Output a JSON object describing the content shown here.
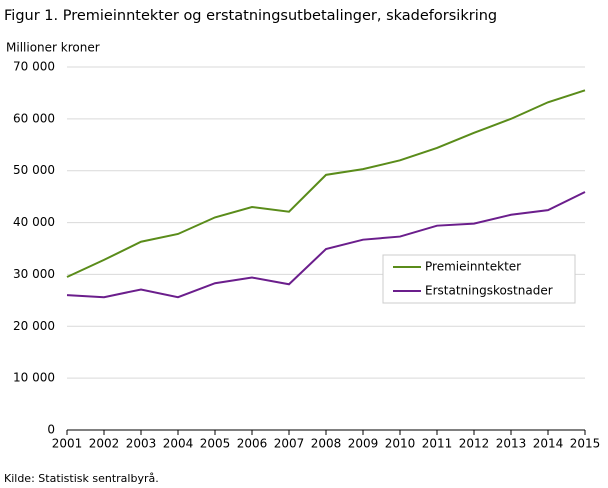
{
  "chart_data": {
    "type": "line",
    "title": "Figur 1. Premieinntekter og erstatningsutbetalinger, skadeforsikring",
    "y_label": "Millioner  kroner",
    "source": "Kilde: Statistisk sentralbyrå.",
    "x": [
      2001,
      2002,
      2003,
      2004,
      2005,
      2006,
      2007,
      2008,
      2009,
      2010,
      2011,
      2012,
      2013,
      2014,
      2015
    ],
    "xlim": [
      2001,
      2015
    ],
    "xticks": [
      2001,
      2002,
      2003,
      2004,
      2005,
      2006,
      2007,
      2008,
      2009,
      2010,
      2011,
      2012,
      2013,
      2014,
      2015
    ],
    "ylim": [
      0,
      70000
    ],
    "yticks": [
      0,
      {
        "value": 10000,
        "label": "10 000"
      },
      {
        "value": 20000,
        "label": "20 000"
      },
      {
        "value": 30000,
        "label": "30 000"
      },
      {
        "value": 40000,
        "label": "40 000"
      },
      {
        "value": 50000,
        "label": "50 000"
      },
      {
        "value": 60000,
        "label": "60 000"
      },
      {
        "value": 70000,
        "label": "70 000"
      }
    ],
    "grid": true,
    "series": [
      {
        "name": "Premieinntekter",
        "color": "#5a8c1a",
        "values": [
          29500,
          32800,
          36300,
          37800,
          41000,
          43000,
          42100,
          49200,
          50300,
          52000,
          54400,
          57300,
          60000,
          63200,
          65500
        ]
      },
      {
        "name": "Erstatningskostnader",
        "color": "#6b1e8c",
        "values": [
          26000,
          25600,
          27100,
          25600,
          28300,
          29400,
          28100,
          34900,
          36700,
          37300,
          39400,
          39800,
          41500,
          42400,
          45900
        ]
      }
    ]
  }
}
